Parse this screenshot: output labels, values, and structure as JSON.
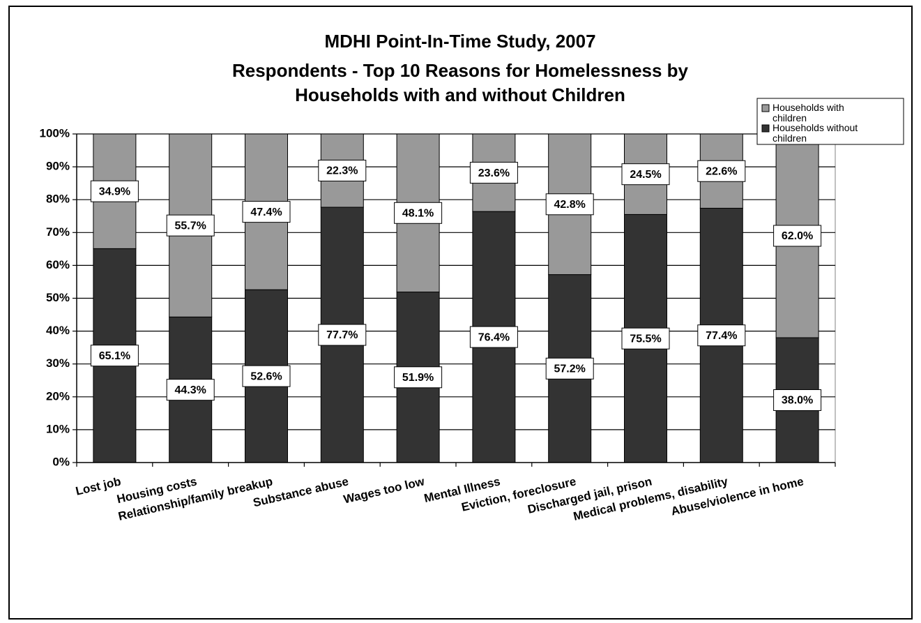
{
  "chart_data": {
    "type": "bar",
    "stacked": true,
    "percent_stacked": true,
    "title_lines": [
      "MDHI Point-In-Time Study, 2007",
      "Respondents - Top 10 Reasons for Homelessness by",
      "Households with and without Children"
    ],
    "categories": [
      "Lost job",
      "Housing costs",
      "Relationship/family breakup",
      "Substance abuse",
      "Wages too low",
      "Mental Illness",
      "Eviction, foreclosure",
      "Discharged jail, prison",
      "Medical problems, disability",
      "Abuse/violence in home"
    ],
    "series": [
      {
        "name": "Households without children",
        "color": "#333333",
        "values": [
          65.1,
          44.3,
          52.6,
          77.7,
          51.9,
          76.4,
          57.2,
          75.5,
          77.4,
          38.0
        ],
        "labels": [
          "65.1%",
          "44.3%",
          "52.6%",
          "77.7%",
          "51.9%",
          "76.4%",
          "57.2%",
          "75.5%",
          "77.4%",
          "38.0%"
        ]
      },
      {
        "name": "Households with children",
        "color": "#999999",
        "values": [
          34.9,
          55.7,
          47.4,
          22.3,
          48.1,
          23.6,
          42.8,
          24.5,
          22.6,
          62.0
        ],
        "labels": [
          "34.9%",
          "55.7%",
          "47.4%",
          "22.3%",
          "48.1%",
          "23.6%",
          "42.8%",
          "24.5%",
          "22.6%",
          "62.0%"
        ]
      }
    ],
    "legend": [
      {
        "label": "Households with children",
        "color": "#999999"
      },
      {
        "label": "Households without children",
        "color": "#333333"
      }
    ],
    "legend_position": "top-right",
    "ylim": [
      0,
      100
    ],
    "y_ticks": [
      "0%",
      "10%",
      "20%",
      "30%",
      "40%",
      "50%",
      "60%",
      "70%",
      "80%",
      "90%",
      "100%"
    ],
    "grid": true,
    "xlabel": "",
    "ylabel": ""
  }
}
